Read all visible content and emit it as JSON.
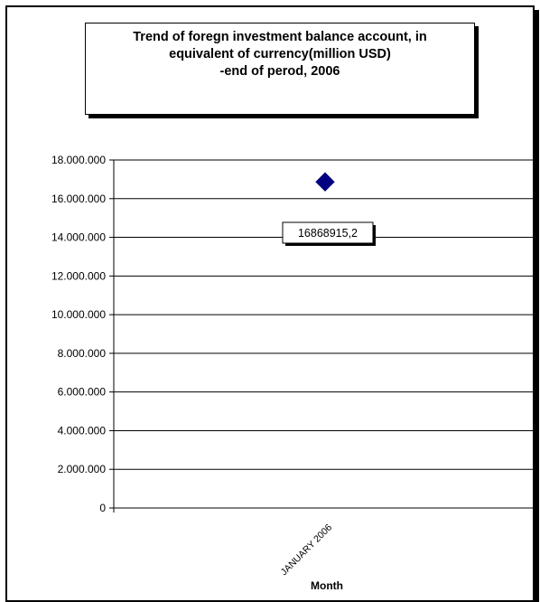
{
  "title_lines": [
    "Trend of foregn investment balance account, in",
    "equivalent of currency(million USD)",
    "-end of perod, 2006"
  ],
  "chart_data": {
    "type": "scatter",
    "title": "Trend of foregn investment balance account, in equivalent of currency(million USD) -end of perod, 2006",
    "xlabel": "Month",
    "ylabel": "",
    "categories": [
      "JANUARY 2006"
    ],
    "series": [
      {
        "values": [
          16868915.2
        ],
        "color": "#000080",
        "marker": "diamond"
      }
    ],
    "data_labels": [
      "16868915,2"
    ],
    "y_ticks": [
      "0",
      "2.000.000",
      "4.000.000",
      "6.000.000",
      "8.000.000",
      "10.000.000",
      "12.000.000",
      "14.000.000",
      "16.000.000",
      "18.000.000"
    ],
    "ylim": [
      0,
      18000000
    ],
    "grid": true,
    "legend": "none"
  }
}
